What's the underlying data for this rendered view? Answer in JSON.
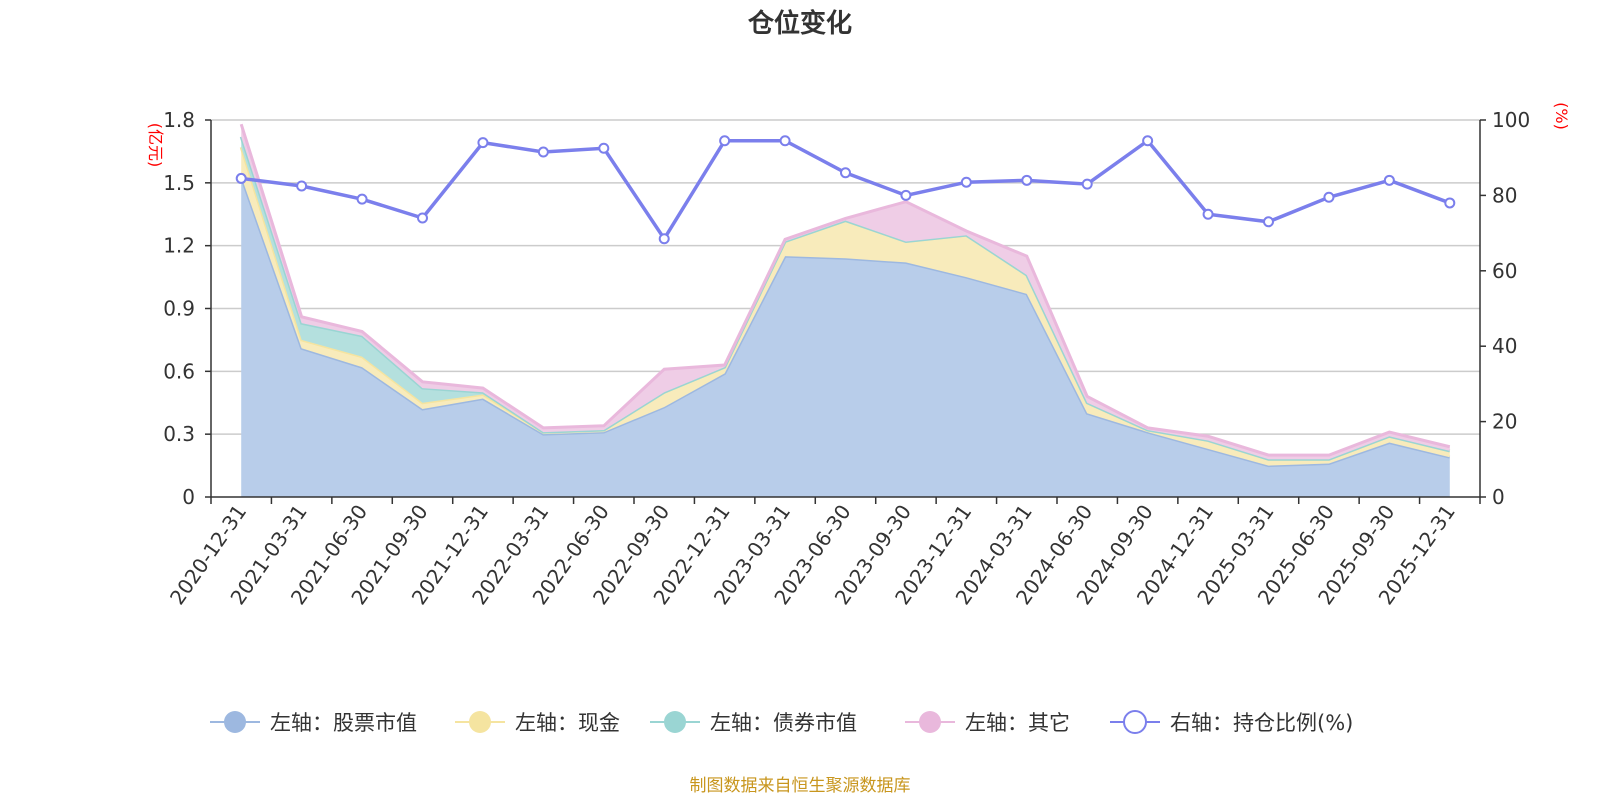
{
  "chart_data": {
    "type": "area",
    "title": "仓位变化",
    "source_note": "制图数据来自恒生聚源数据库",
    "left_axis": {
      "unit": "(亿元)",
      "min": 0,
      "max": 1.8,
      "ticks": [
        "0",
        "0.3",
        "0.6",
        "0.9",
        "1.2",
        "1.5",
        "1.8"
      ]
    },
    "right_axis": {
      "unit": "(%)",
      "min": 0,
      "max": 100,
      "ticks": [
        "0",
        "20",
        "40",
        "60",
        "80",
        "100"
      ]
    },
    "categories": [
      "2020-12-31",
      "2021-03-31",
      "2021-06-30",
      "2021-09-30",
      "2021-12-31",
      "2022-03-31",
      "2022-06-30",
      "2022-09-30",
      "2022-12-31",
      "2023-03-31",
      "2023-06-30",
      "2023-09-30",
      "2023-12-31",
      "2024-03-31",
      "2024-06-30",
      "2024-09-30",
      "2024-12-31",
      "2025-03-31",
      "2025-06-30",
      "2025-09-30",
      "2025-12-31"
    ],
    "stacked_series": [
      {
        "name": "左轴：股票市值",
        "color": "#9db8e0",
        "fill": "#b8cdea",
        "values": [
          1.53,
          0.71,
          0.62,
          0.42,
          0.47,
          0.3,
          0.31,
          0.43,
          0.59,
          1.15,
          1.14,
          1.12,
          1.05,
          0.97,
          0.4,
          0.31,
          0.23,
          0.15,
          0.16,
          0.26,
          0.19
        ]
      },
      {
        "name": "左轴：现金",
        "color": "#f5e4a0",
        "fill": "#f8ebbb",
        "values": [
          0.14,
          0.04,
          0.05,
          0.03,
          0.02,
          0.01,
          0.01,
          0.07,
          0.03,
          0.07,
          0.18,
          0.1,
          0.2,
          0.09,
          0.05,
          0.01,
          0.04,
          0.03,
          0.02,
          0.03,
          0.03
        ]
      },
      {
        "name": "左轴：债券市值",
        "color": "#9ad5d3",
        "fill": "#b4e0de",
        "values": [
          0.05,
          0.08,
          0.1,
          0.07,
          0.01,
          0,
          0,
          0,
          0,
          0,
          0,
          0,
          0,
          0,
          0,
          0,
          0,
          0,
          0,
          0,
          0
        ]
      },
      {
        "name": "左轴：其它",
        "color": "#e9b8dc",
        "fill": "#efcde6",
        "values": [
          0.06,
          0.03,
          0.02,
          0.03,
          0.02,
          0.02,
          0.02,
          0.11,
          0.01,
          0.01,
          0.01,
          0.19,
          0.02,
          0.09,
          0.03,
          0.01,
          0.02,
          0.02,
          0.02,
          0.02,
          0.02
        ]
      }
    ],
    "line_series": {
      "name": "右轴：持仓比例(%)",
      "color": "#7b7fec",
      "axis": "right",
      "values": [
        84.5,
        82.5,
        79,
        74,
        94,
        91.5,
        92.5,
        68.5,
        94.5,
        94.5,
        86,
        80,
        83.5,
        84,
        83,
        94.5,
        75,
        73,
        79.5,
        84,
        78
      ]
    },
    "legend_position": "bottom"
  }
}
